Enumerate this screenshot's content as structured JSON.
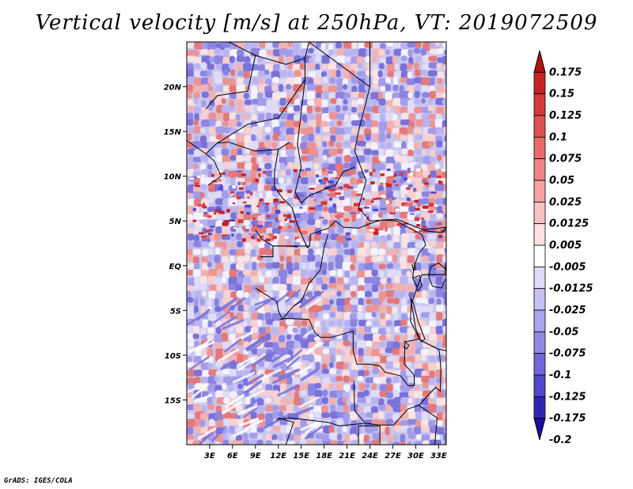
{
  "title": "Vertical velocity [m/s] at 250hPa, VT: 2019072509",
  "footer": "GrADS: IGES/COLA",
  "map": {
    "lon_range": [
      0,
      34
    ],
    "lat_range": [
      -20,
      25
    ],
    "lon_ticks": [
      "3E",
      "6E",
      "9E",
      "12E",
      "15E",
      "18E",
      "21E",
      "24E",
      "27E",
      "30E",
      "33E"
    ],
    "lat_ticks": [
      "20N",
      "15N",
      "10N",
      "5N",
      "EQ",
      "5S",
      "10S",
      "15S"
    ],
    "lon_values": [
      3,
      6,
      9,
      12,
      15,
      18,
      21,
      24,
      27,
      30,
      33
    ],
    "lat_values": [
      20,
      15,
      10,
      5,
      0,
      -5,
      -10,
      -15
    ]
  },
  "colorbar": {
    "levels": [
      "0.175",
      "0.15",
      "0.125",
      "0.1",
      "0.075",
      "0.05",
      "0.025",
      "0.0125",
      "0.005",
      "-0.005",
      "-0.0125",
      "-0.025",
      "-0.05",
      "-0.075",
      "-0.1",
      "-0.125",
      "-0.175",
      "-0.2"
    ],
    "colors": [
      "#b31212",
      "#c62323",
      "#d63a3a",
      "#e05252",
      "#e86a6a",
      "#ef8585",
      "#f5a3a3",
      "#f9c2c2",
      "#fde0e0",
      "#ffffff",
      "#dedcf7",
      "#c5c1f2",
      "#aaa5ec",
      "#8f89e4",
      "#7068da",
      "#5048cc",
      "#3026b6",
      "#1c0f9c"
    ]
  },
  "colors": {
    "low": "#1c0f9c",
    "high": "#b31212",
    "neutral": "#ffffff",
    "border": "#000000"
  }
}
